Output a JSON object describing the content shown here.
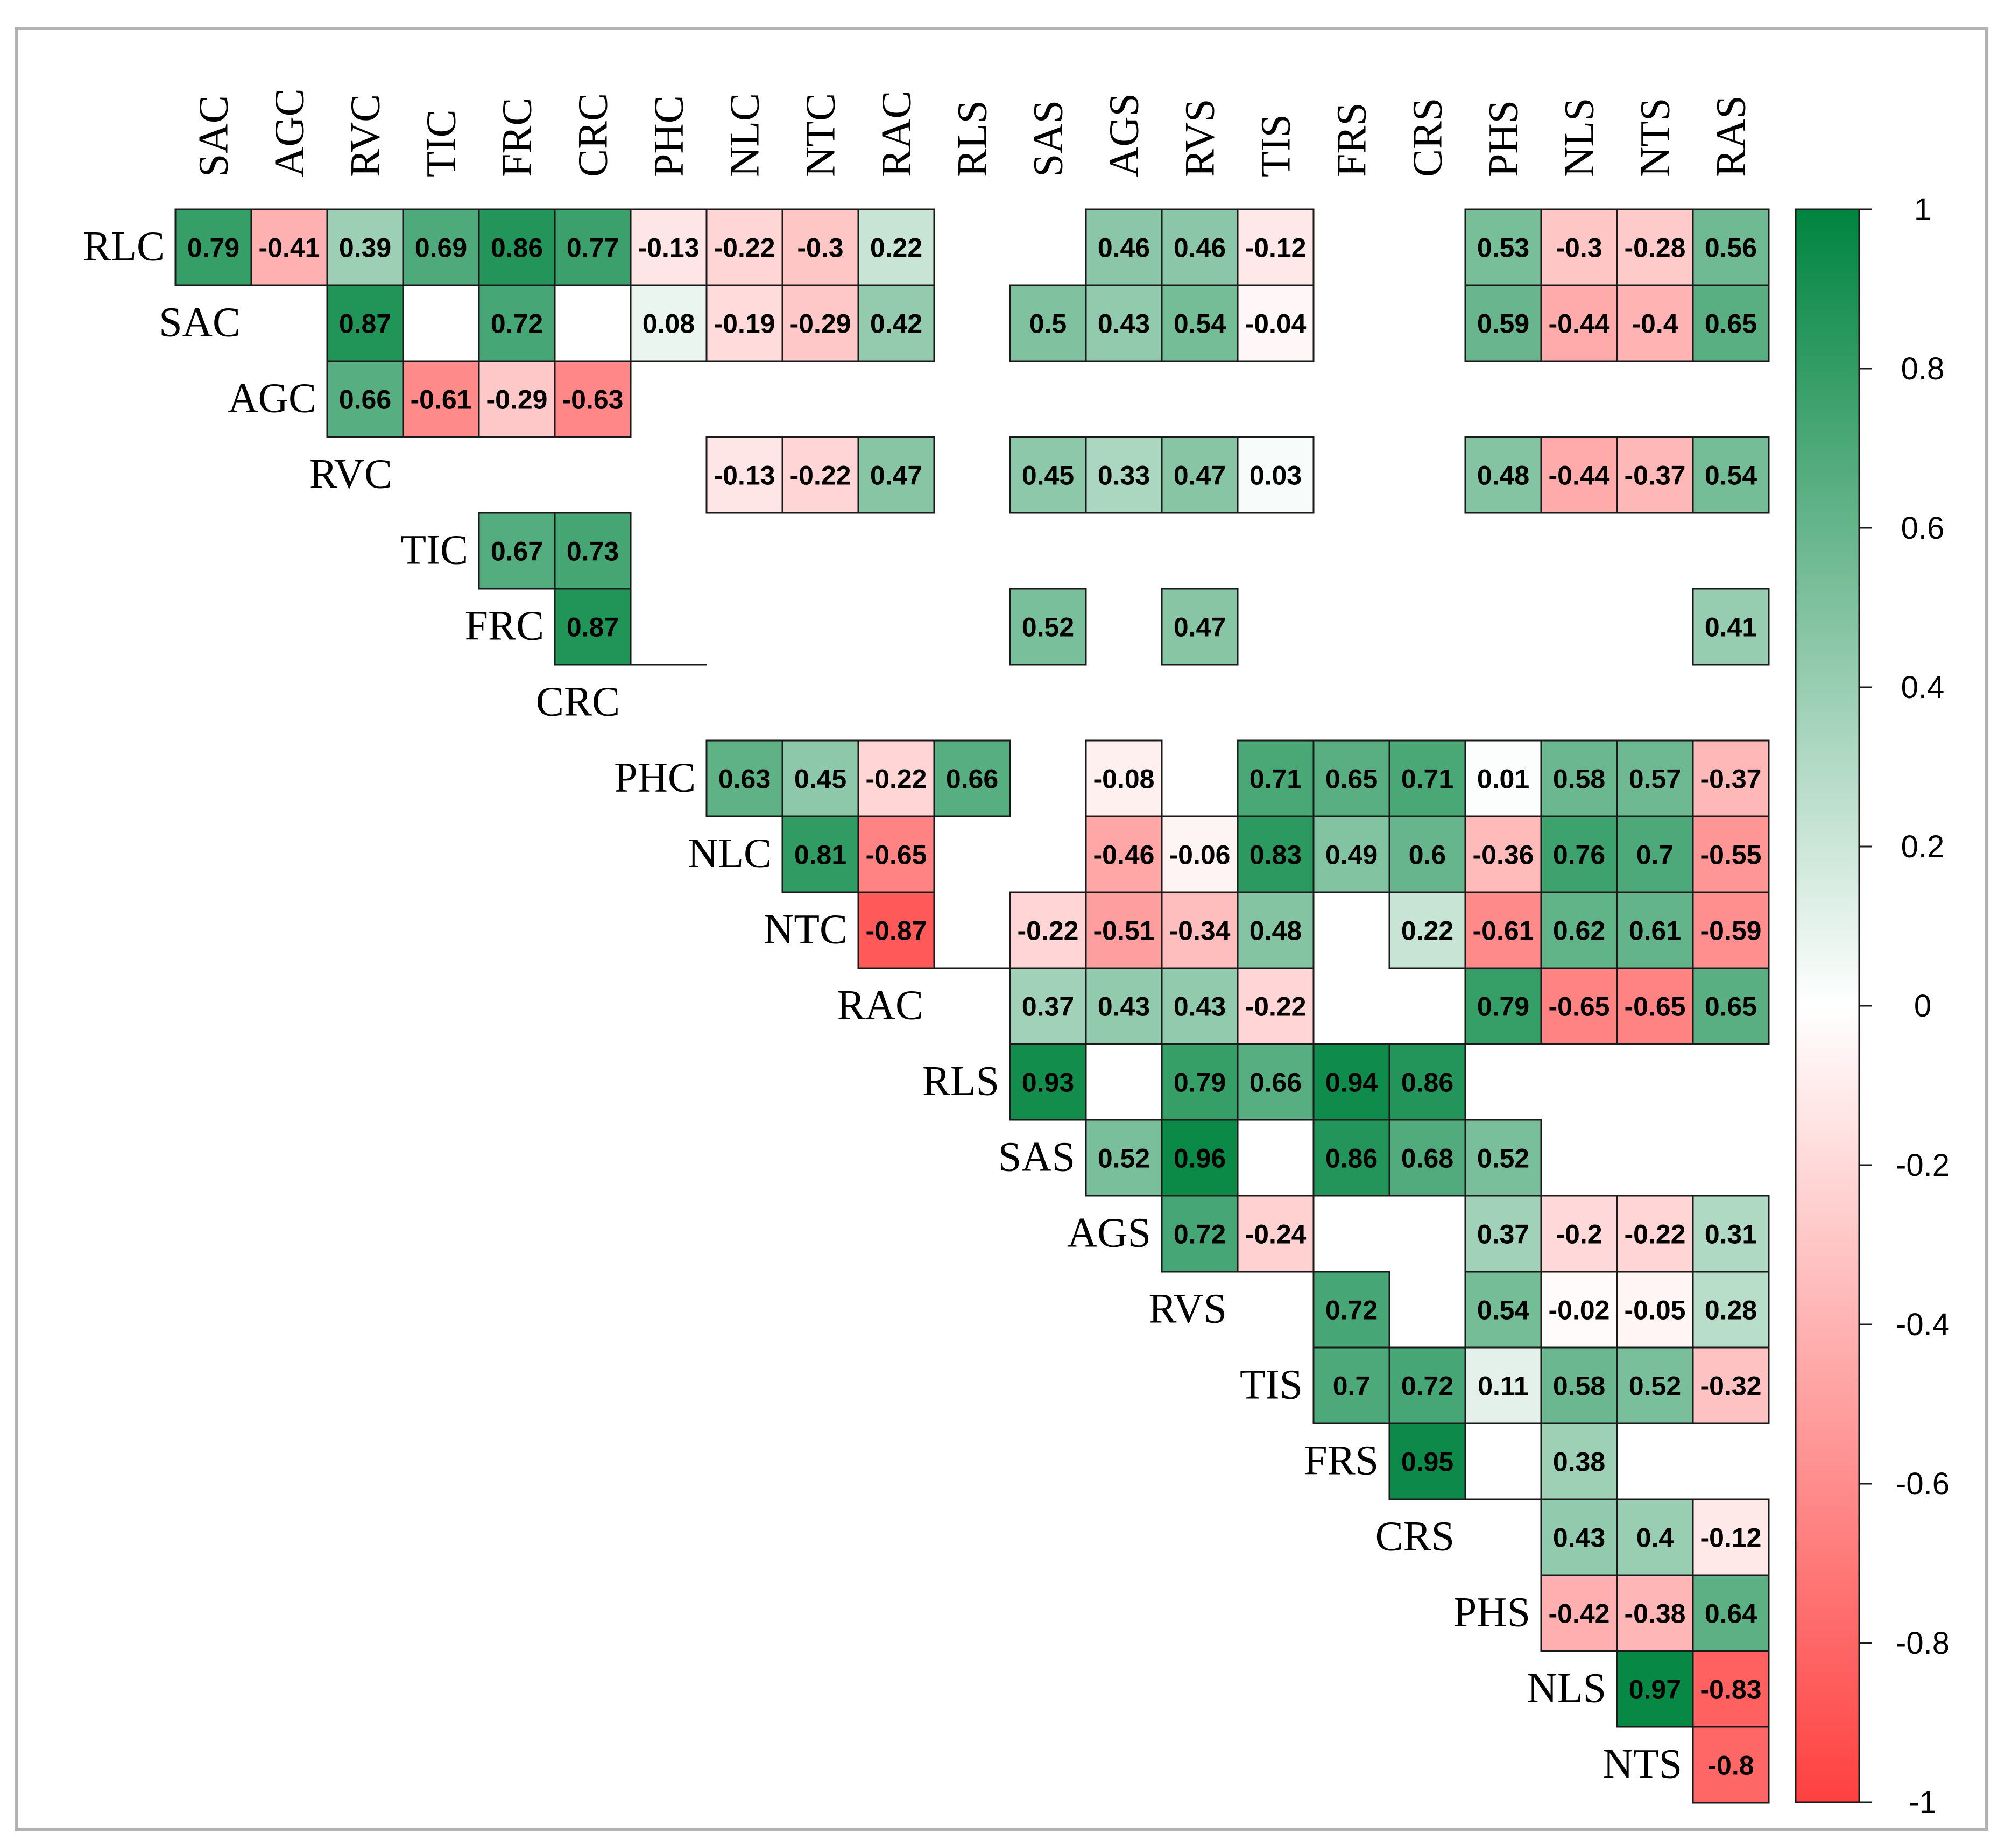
{
  "chart_data": {
    "type": "heatmap",
    "title": "",
    "variables": [
      "RLC",
      "SAC",
      "AGC",
      "RVC",
      "TIC",
      "FRC",
      "CRC",
      "PHC",
      "NLC",
      "NTC",
      "RAC",
      "RLS",
      "SAS",
      "AGS",
      "RVS",
      "TIS",
      "FRS",
      "CRS",
      "PHS",
      "NLS",
      "NTS",
      "RAS"
    ],
    "row_labels": [
      "RLC",
      "SAC",
      "AGC",
      "RVC",
      "TIC",
      "FRC",
      "CRC",
      "PHC",
      "NLC",
      "NTC",
      "RAC",
      "RLS",
      "SAS",
      "AGS",
      "RVS",
      "TIS",
      "FRS",
      "CRS",
      "PHS",
      "NLS",
      "NTS"
    ],
    "column_labels": [
      "SAC",
      "AGC",
      "RVC",
      "TIC",
      "FRC",
      "CRC",
      "PHC",
      "NLC",
      "NTC",
      "RAC",
      "RLS",
      "SAS",
      "AGS",
      "RVS",
      "TIS",
      "FRS",
      "CRS",
      "PHS",
      "NLS",
      "NTS",
      "RAS"
    ],
    "layout": "upper-triangle",
    "blank_means": "not significant",
    "color_scale": {
      "min": -1,
      "max": 1,
      "low_color": "#ff4040",
      "mid_color": "#ffffff",
      "high_color": "#00843f",
      "ticks": [
        "1",
        "0.8",
        "0.6",
        "0.4",
        "0.2",
        "0",
        "-0.2",
        "-0.4",
        "-0.6",
        "-0.8",
        "-1"
      ]
    },
    "rows": [
      {
        "row": "RLC",
        "values": [
          [
            "SAC",
            0.79
          ],
          [
            "AGC",
            -0.41
          ],
          [
            "RVC",
            0.39
          ],
          [
            "TIC",
            0.69
          ],
          [
            "FRC",
            0.86
          ],
          [
            "CRC",
            0.77
          ],
          [
            "PHC",
            -0.13
          ],
          [
            "NLC",
            -0.22
          ],
          [
            "NTC",
            -0.3
          ],
          [
            "RAC",
            0.22
          ],
          [
            "AGS",
            0.46
          ],
          [
            "RVS",
            0.46
          ],
          [
            "TIS",
            -0.12
          ],
          [
            "PHS",
            0.53
          ],
          [
            "NLS",
            -0.3
          ],
          [
            "NTS",
            -0.28
          ],
          [
            "RAS",
            0.56
          ]
        ]
      },
      {
        "row": "SAC",
        "values": [
          [
            "RVC",
            0.87
          ],
          [
            "FRC",
            0.72
          ],
          [
            "PHC",
            0.08
          ],
          [
            "NLC",
            -0.19
          ],
          [
            "NTC",
            -0.29
          ],
          [
            "RAC",
            0.42
          ],
          [
            "SAS",
            0.5
          ],
          [
            "AGS",
            0.43
          ],
          [
            "RVS",
            0.54
          ],
          [
            "TIS",
            -0.04
          ],
          [
            "PHS",
            0.59
          ],
          [
            "NLS",
            -0.44
          ],
          [
            "NTS",
            -0.4
          ],
          [
            "RAS",
            0.65
          ]
        ]
      },
      {
        "row": "AGC",
        "values": [
          [
            "RVC",
            0.66
          ],
          [
            "TIC",
            -0.61
          ],
          [
            "FRC",
            -0.29
          ],
          [
            "CRC",
            -0.63
          ]
        ]
      },
      {
        "row": "RVC",
        "values": [
          [
            "NLC",
            -0.13
          ],
          [
            "NTC",
            -0.22
          ],
          [
            "RAC",
            0.47
          ],
          [
            "SAS",
            0.45
          ],
          [
            "AGS",
            0.33
          ],
          [
            "RVS",
            0.47
          ],
          [
            "TIS",
            0.03
          ],
          [
            "PHS",
            0.48
          ],
          [
            "NLS",
            -0.44
          ],
          [
            "NTS",
            -0.37
          ],
          [
            "RAS",
            0.54
          ]
        ]
      },
      {
        "row": "TIC",
        "values": [
          [
            "FRC",
            0.67
          ],
          [
            "CRC",
            0.73
          ]
        ]
      },
      {
        "row": "FRC",
        "values": [
          [
            "CRC",
            0.87
          ],
          [
            "SAS",
            0.52
          ],
          [
            "RVS",
            0.47
          ],
          [
            "RAS",
            0.41
          ]
        ]
      },
      {
        "row": "CRC",
        "values": []
      },
      {
        "row": "PHC",
        "values": [
          [
            "NLC",
            0.63
          ],
          [
            "NTC",
            0.45
          ],
          [
            "RAC",
            -0.22
          ],
          [
            "RLS",
            0.66
          ],
          [
            "AGS",
            -0.08
          ],
          [
            "TIS",
            0.71
          ],
          [
            "FRS",
            0.65
          ],
          [
            "CRS",
            0.71
          ],
          [
            "PHS",
            0.01
          ],
          [
            "NLS",
            0.58
          ],
          [
            "NTS",
            0.57
          ],
          [
            "RAS",
            -0.37
          ]
        ]
      },
      {
        "row": "NLC",
        "values": [
          [
            "NTC",
            0.81
          ],
          [
            "RAC",
            -0.65
          ],
          [
            "AGS",
            -0.46
          ],
          [
            "RVS",
            -0.06
          ],
          [
            "TIS",
            0.83
          ],
          [
            "FRS",
            0.49
          ],
          [
            "CRS",
            0.6
          ],
          [
            "PHS",
            -0.36
          ],
          [
            "NLS",
            0.76
          ],
          [
            "NTS",
            0.7
          ],
          [
            "RAS",
            -0.55
          ]
        ]
      },
      {
        "row": "NTC",
        "values": [
          [
            "RAC",
            -0.87
          ],
          [
            "SAS",
            -0.22
          ],
          [
            "AGS",
            -0.51
          ],
          [
            "RVS",
            -0.34
          ],
          [
            "TIS",
            0.48
          ],
          [
            "CRS",
            0.22
          ],
          [
            "PHS",
            -0.61
          ],
          [
            "NLS",
            0.62
          ],
          [
            "NTS",
            0.61
          ],
          [
            "RAS",
            -0.59
          ]
        ]
      },
      {
        "row": "RAC",
        "values": [
          [
            "SAS",
            0.37
          ],
          [
            "AGS",
            0.43
          ],
          [
            "RVS",
            0.43
          ],
          [
            "TIS",
            -0.22
          ],
          [
            "PHS",
            0.79
          ],
          [
            "NLS",
            -0.65
          ],
          [
            "NTS",
            -0.65
          ],
          [
            "RAS",
            0.65
          ]
        ]
      },
      {
        "row": "RLS",
        "values": [
          [
            "SAS",
            0.93
          ],
          [
            "RVS",
            0.79
          ],
          [
            "TIS",
            0.66
          ],
          [
            "FRS",
            0.94
          ],
          [
            "CRS",
            0.86
          ]
        ]
      },
      {
        "row": "SAS",
        "values": [
          [
            "AGS",
            0.52
          ],
          [
            "RVS",
            0.96
          ],
          [
            "FRS",
            0.86
          ],
          [
            "CRS",
            0.68
          ],
          [
            "PHS",
            0.52
          ]
        ]
      },
      {
        "row": "AGS",
        "values": [
          [
            "RVS",
            0.72
          ],
          [
            "TIS",
            -0.24
          ],
          [
            "PHS",
            0.37
          ],
          [
            "NLS",
            -0.2
          ],
          [
            "NTS",
            -0.22
          ],
          [
            "RAS",
            0.31
          ]
        ]
      },
      {
        "row": "RVS",
        "values": [
          [
            "FRS",
            0.72
          ],
          [
            "PHS",
            0.54
          ],
          [
            "NLS",
            -0.02
          ],
          [
            "NTS",
            -0.05
          ],
          [
            "RAS",
            0.28
          ]
        ]
      },
      {
        "row": "TIS",
        "values": [
          [
            "FRS",
            0.7
          ],
          [
            "CRS",
            0.72
          ],
          [
            "PHS",
            0.11
          ],
          [
            "NLS",
            0.58
          ],
          [
            "NTS",
            0.52
          ],
          [
            "RAS",
            -0.32
          ]
        ]
      },
      {
        "row": "FRS",
        "values": [
          [
            "CRS",
            0.95
          ],
          [
            "NLS",
            0.38
          ]
        ]
      },
      {
        "row": "CRS",
        "values": [
          [
            "NLS",
            0.43
          ],
          [
            "NTS",
            0.4
          ],
          [
            "RAS",
            -0.12
          ]
        ]
      },
      {
        "row": "PHS",
        "values": [
          [
            "NLS",
            -0.42
          ],
          [
            "NTS",
            -0.38
          ],
          [
            "RAS",
            0.64
          ]
        ]
      },
      {
        "row": "NLS",
        "values": [
          [
            "NTS",
            0.97
          ],
          [
            "RAS",
            -0.83
          ]
        ]
      },
      {
        "row": "NTS",
        "values": [
          [
            "RAS",
            -0.8
          ]
        ]
      }
    ]
  }
}
